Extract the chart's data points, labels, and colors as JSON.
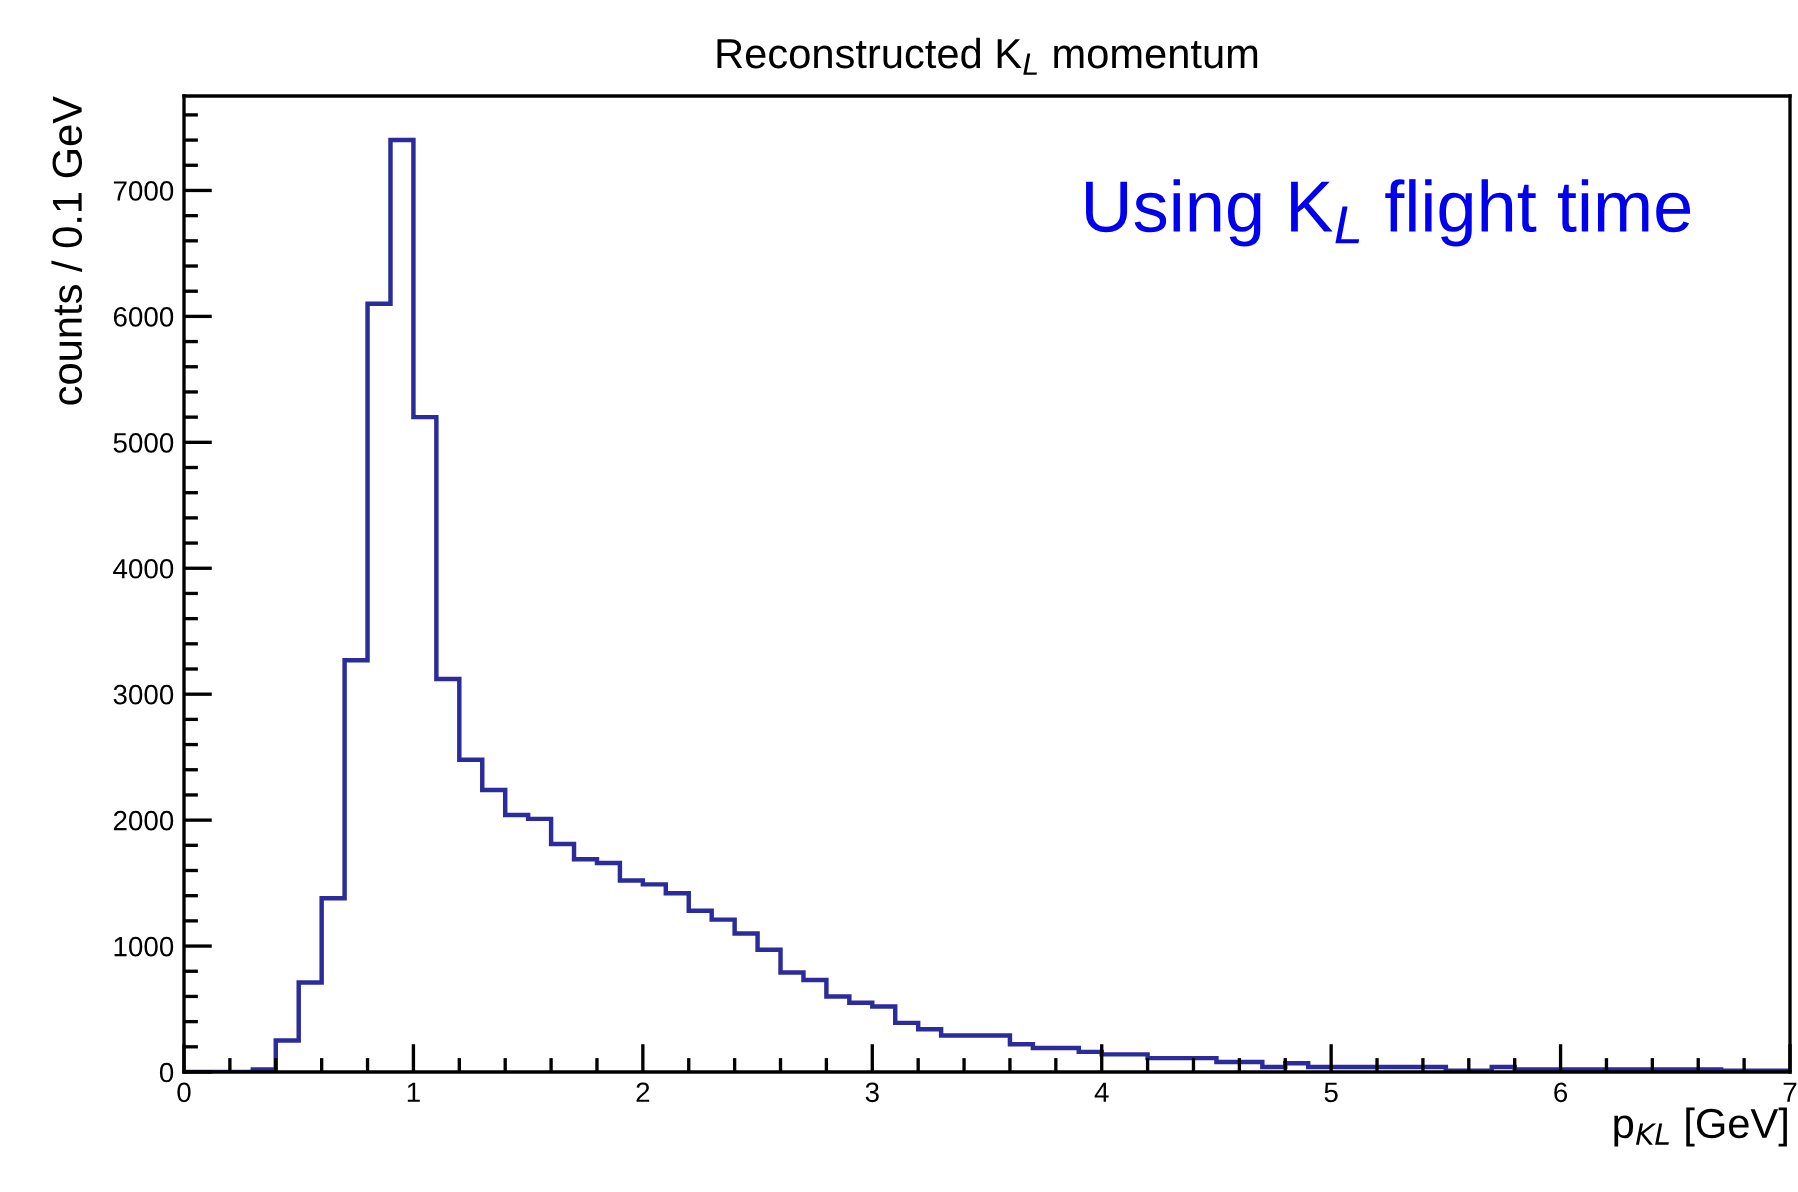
{
  "chart_data": {
    "type": "histogram",
    "title": "Reconstructed K$_{L}$ momentum",
    "xlabel": "p$_{KL}$ [GeV]",
    "ylabel": "counts / 0.1 GeV",
    "annotations": [
      "Using K$_{L}$ flight time"
    ],
    "bins": [
      0,
      0.1,
      0.2,
      0.3,
      0.4,
      0.5,
      0.6,
      0.7,
      0.8,
      0.9,
      1,
      1.1,
      1.2,
      1.3,
      1.4,
      1.5,
      1.6,
      1.7,
      1.8,
      1.9,
      2,
      2.1,
      2.2,
      2.3,
      2.4,
      2.5,
      2.6,
      2.7,
      2.8,
      2.9,
      3,
      3.1,
      3.2,
      3.3,
      3.4,
      3.5,
      3.6,
      3.7,
      3.8,
      3.9,
      4,
      4.1,
      4.2,
      4.3,
      4.4,
      4.5,
      4.6,
      4.7,
      4.8,
      4.9,
      5,
      5.1,
      5.2,
      5.3,
      5.4,
      5.5,
      5.6,
      5.7,
      5.8,
      5.9,
      6,
      6.1,
      6.2,
      6.3,
      6.4,
      6.5,
      6.6,
      6.7,
      6.8,
      6.9,
      7
    ],
    "values": [
      0,
      0,
      0,
      20,
      250,
      710,
      1380,
      3270,
      6100,
      7400,
      5200,
      3120,
      2480,
      2240,
      2040,
      2010,
      1810,
      1690,
      1660,
      1520,
      1490,
      1420,
      1280,
      1210,
      1100,
      970,
      790,
      730,
      600,
      550,
      520,
      390,
      340,
      290,
      290,
      290,
      220,
      190,
      190,
      160,
      140,
      140,
      110,
      110,
      110,
      80,
      80,
      40,
      70,
      40,
      40,
      40,
      40,
      40,
      40,
      10,
      10,
      40,
      20,
      20,
      20,
      20,
      20,
      20,
      20,
      20,
      20,
      10,
      10,
      10
    ],
    "color": "#2b2b9c",
    "xlim": [
      0,
      7
    ],
    "ylim": [
      0,
      7750
    ],
    "xticks": [
      0,
      {
        "value": 0.2,
        "label": null
      },
      {
        "value": 0.4,
        "label": null
      },
      {
        "value": 0.6,
        "label": null
      },
      {
        "value": 0.8,
        "label": null
      },
      1,
      {
        "value": 1.2,
        "label": null
      },
      {
        "value": 1.4,
        "label": null
      },
      {
        "value": 1.6,
        "label": null
      },
      {
        "value": 1.8,
        "label": null
      },
      2,
      {
        "value": 2.2,
        "label": null
      },
      {
        "value": 2.4,
        "label": null
      },
      {
        "value": 2.6,
        "label": null
      },
      {
        "value": 2.8,
        "label": null
      },
      3,
      {
        "value": 3.2,
        "label": null
      },
      {
        "value": 3.4,
        "label": null
      },
      {
        "value": 3.6,
        "label": null
      },
      {
        "value": 3.8,
        "label": null
      },
      4,
      {
        "value": 4.2,
        "label": null
      },
      {
        "value": 4.4,
        "label": null
      },
      {
        "value": 4.6,
        "label": null
      },
      {
        "value": 4.8,
        "label": null
      },
      5,
      {
        "value": 5.2,
        "label": null
      },
      {
        "value": 5.4,
        "label": null
      },
      {
        "value": 5.6,
        "label": null
      },
      {
        "value": 5.8,
        "label": null
      },
      6,
      {
        "value": 6.2,
        "label": null
      },
      {
        "value": 6.4,
        "label": null
      },
      {
        "value": 6.6,
        "label": null
      },
      {
        "value": 6.8,
        "label": null
      },
      7
    ],
    "yticks": [
      0,
      {
        "value": 200,
        "label": null
      },
      {
        "value": 400,
        "label": null
      },
      {
        "value": 600,
        "label": null
      },
      {
        "value": 800,
        "label": null
      },
      1000,
      {
        "value": 1200,
        "label": null
      },
      {
        "value": 1400,
        "label": null
      },
      {
        "value": 1600,
        "label": null
      },
      {
        "value": 1800,
        "label": null
      },
      2000,
      {
        "value": 2200,
        "label": null
      },
      {
        "value": 2400,
        "label": null
      },
      {
        "value": 2600,
        "label": null
      },
      {
        "value": 2800,
        "label": null
      },
      3000,
      {
        "value": 3200,
        "label": null
      },
      {
        "value": 3400,
        "label": null
      },
      {
        "value": 3600,
        "label": null
      },
      {
        "value": 3800,
        "label": null
      },
      4000,
      {
        "value": 4200,
        "label": null
      },
      {
        "value": 4400,
        "label": null
      },
      {
        "value": 4600,
        "label": null
      },
      {
        "value": 4800,
        "label": null
      },
      5000,
      {
        "value": 5200,
        "label": null
      },
      {
        "value": 5400,
        "label": null
      },
      {
        "value": 5600,
        "label": null
      },
      {
        "value": 5800,
        "label": null
      },
      6000,
      {
        "value": 6200,
        "label": null
      },
      {
        "value": 6400,
        "label": null
      },
      {
        "value": 6600,
        "label": null
      },
      {
        "value": 6800,
        "label": null
      },
      7000,
      {
        "value": 7200,
        "label": null
      },
      {
        "value": 7400,
        "label": null
      },
      {
        "value": 7600,
        "label": null
      }
    ],
    "grid": false,
    "legend": false
  }
}
